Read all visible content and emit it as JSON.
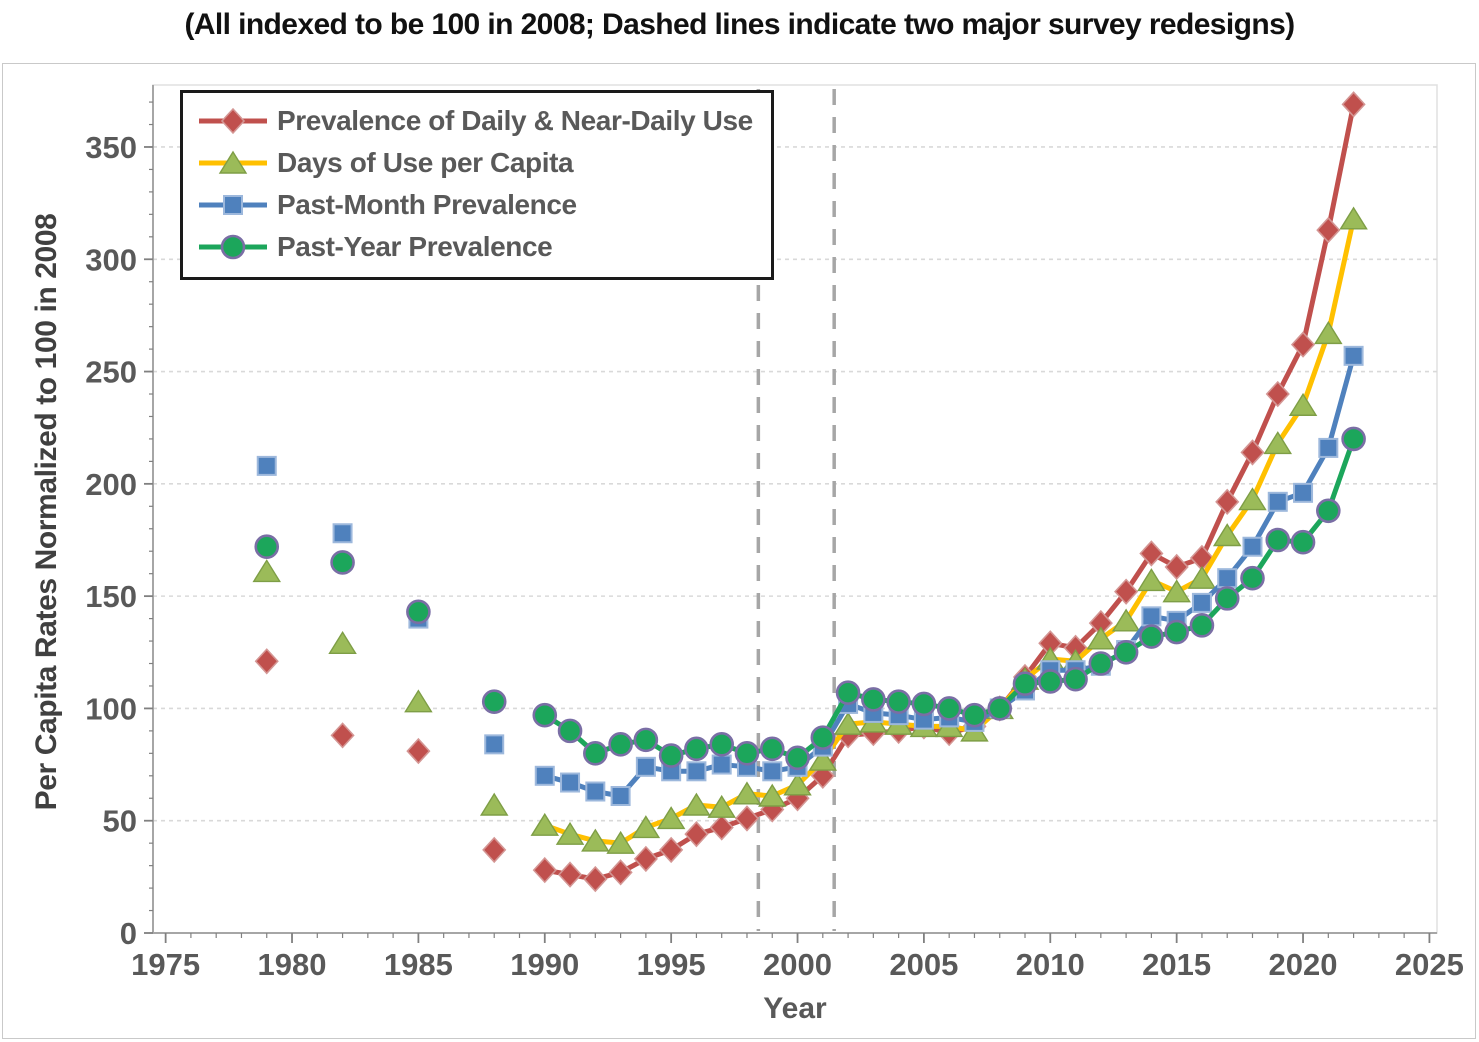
{
  "page_title": "(All indexed to be 100 in 2008; Dashed lines indicate two major survey redesigns)",
  "chart_data": {
    "type": "line",
    "title": "(All indexed to be 100 in 2008; Dashed lines indicate two major survey redesigns)",
    "xlabel": "Year",
    "ylabel": "Per Capita Rates Normalized to 100 in 2008",
    "xlim": [
      1974.5,
      2025.3
    ],
    "ylim": [
      0,
      377.6
    ],
    "x_ticks": [
      1975,
      1980,
      1985,
      1990,
      1995,
      2000,
      2005,
      2010,
      2015,
      2020,
      2025
    ],
    "x_minor_step": 1,
    "y_ticks": [
      0,
      50,
      100,
      150,
      200,
      250,
      300,
      350
    ],
    "y_minor_step": 10,
    "grid": "horizontal-dashed",
    "legend_position": "top-left",
    "redesign_lines": [
      1998.45,
      2001.45
    ],
    "line_start_year": 1990,
    "colors": {
      "grid": "#d9d9d9",
      "axis": "#a6a6a6",
      "tick": "#808080",
      "tick_label": "#595959",
      "redesign_dash": "#a6a6a6"
    },
    "series": [
      {
        "name": "Prevalence of Daily & Near-Daily Use",
        "color": "#C0504D",
        "marker": "diamond",
        "marker_fill": "#C0504D",
        "marker_stroke": "#D49694",
        "points": [
          [
            1979,
            121
          ],
          [
            1982,
            88
          ],
          [
            1985,
            81
          ],
          [
            1988,
            37
          ],
          [
            1990,
            28
          ],
          [
            1991,
            26
          ],
          [
            1992,
            24
          ],
          [
            1993,
            27
          ],
          [
            1994,
            33
          ],
          [
            1995,
            37
          ],
          [
            1996,
            44
          ],
          [
            1997,
            47
          ],
          [
            1998,
            51
          ],
          [
            1999,
            55
          ],
          [
            2000,
            60
          ],
          [
            2001,
            70
          ],
          [
            2002,
            88
          ],
          [
            2003,
            89
          ],
          [
            2004,
            90
          ],
          [
            2005,
            92
          ],
          [
            2006,
            89
          ],
          [
            2007,
            92
          ],
          [
            2008,
            100
          ],
          [
            2009,
            114
          ],
          [
            2010,
            129
          ],
          [
            2011,
            127
          ],
          [
            2012,
            138
          ],
          [
            2013,
            152
          ],
          [
            2014,
            169
          ],
          [
            2015,
            163
          ],
          [
            2016,
            167
          ],
          [
            2017,
            192
          ],
          [
            2018,
            214
          ],
          [
            2019,
            240
          ],
          [
            2020,
            262
          ],
          [
            2021,
            313
          ],
          [
            2022,
            369
          ]
        ]
      },
      {
        "name": "Days of Use per Capita",
        "color": "#FFC000",
        "marker": "triangle",
        "marker_fill": "#9BBB59",
        "marker_stroke": "#7E9E46",
        "points": [
          [
            1979,
            161
          ],
          [
            1982,
            129
          ],
          [
            1985,
            103
          ],
          [
            1988,
            57
          ],
          [
            1990,
            48
          ],
          [
            1991,
            44
          ],
          [
            1992,
            41
          ],
          [
            1993,
            40
          ],
          [
            1994,
            47
          ],
          [
            1995,
            51
          ],
          [
            1996,
            57
          ],
          [
            1997,
            56
          ],
          [
            1998,
            62
          ],
          [
            1999,
            61
          ],
          [
            2000,
            66
          ],
          [
            2001,
            77
          ],
          [
            2002,
            93
          ],
          [
            2003,
            94
          ],
          [
            2004,
            93
          ],
          [
            2005,
            92
          ],
          [
            2006,
            92
          ],
          [
            2007,
            90
          ],
          [
            2008,
            100
          ],
          [
            2009,
            113
          ],
          [
            2010,
            122
          ],
          [
            2011,
            121
          ],
          [
            2012,
            131
          ],
          [
            2013,
            139
          ],
          [
            2014,
            157
          ],
          [
            2015,
            152
          ],
          [
            2016,
            158
          ],
          [
            2017,
            177
          ],
          [
            2018,
            193
          ],
          [
            2019,
            218
          ],
          [
            2020,
            235
          ],
          [
            2021,
            267
          ],
          [
            2022,
            318
          ]
        ]
      },
      {
        "name": "Past-Month Prevalence",
        "color": "#4F81BD",
        "marker": "square",
        "marker_fill": "#4F81BD",
        "marker_stroke": "#9DB8DC",
        "points": [
          [
            1979,
            208
          ],
          [
            1982,
            178
          ],
          [
            1985,
            140
          ],
          [
            1988,
            84
          ],
          [
            1990,
            70
          ],
          [
            1991,
            67
          ],
          [
            1992,
            63
          ],
          [
            1993,
            61
          ],
          [
            1994,
            74
          ],
          [
            1995,
            72
          ],
          [
            1996,
            72
          ],
          [
            1997,
            75
          ],
          [
            1998,
            74
          ],
          [
            1999,
            72
          ],
          [
            2000,
            74
          ],
          [
            2001,
            83
          ],
          [
            2002,
            102
          ],
          [
            2003,
            98
          ],
          [
            2004,
            97
          ],
          [
            2005,
            95
          ],
          [
            2006,
            96
          ],
          [
            2007,
            94
          ],
          [
            2008,
            100
          ],
          [
            2009,
            108
          ],
          [
            2010,
            117
          ],
          [
            2011,
            117
          ],
          [
            2012,
            119
          ],
          [
            2013,
            126
          ],
          [
            2014,
            141
          ],
          [
            2015,
            139
          ],
          [
            2016,
            147
          ],
          [
            2017,
            158
          ],
          [
            2018,
            172
          ],
          [
            2019,
            192
          ],
          [
            2020,
            196
          ],
          [
            2021,
            216
          ],
          [
            2022,
            257
          ]
        ]
      },
      {
        "name": "Past-Year Prevalence",
        "color": "#1CA65B",
        "marker": "circle",
        "marker_fill": "#1CA65B",
        "marker_stroke": "#7A6EA5",
        "points": [
          [
            1979,
            172
          ],
          [
            1982,
            165
          ],
          [
            1985,
            143
          ],
          [
            1988,
            103
          ],
          [
            1990,
            97
          ],
          [
            1991,
            90
          ],
          [
            1992,
            80
          ],
          [
            1993,
            84
          ],
          [
            1994,
            86
          ],
          [
            1995,
            79
          ],
          [
            1996,
            82
          ],
          [
            1997,
            84
          ],
          [
            1998,
            80
          ],
          [
            1999,
            82
          ],
          [
            2000,
            78
          ],
          [
            2001,
            87
          ],
          [
            2002,
            107
          ],
          [
            2003,
            104
          ],
          [
            2004,
            103
          ],
          [
            2005,
            102
          ],
          [
            2006,
            100
          ],
          [
            2007,
            97
          ],
          [
            2008,
            100
          ],
          [
            2009,
            111
          ],
          [
            2010,
            112
          ],
          [
            2011,
            113
          ],
          [
            2012,
            120
          ],
          [
            2013,
            125
          ],
          [
            2014,
            132
          ],
          [
            2015,
            134
          ],
          [
            2016,
            137
          ],
          [
            2017,
            149
          ],
          [
            2018,
            158
          ],
          [
            2019,
            175
          ],
          [
            2020,
            174
          ],
          [
            2021,
            188
          ],
          [
            2022,
            220
          ]
        ]
      }
    ]
  }
}
